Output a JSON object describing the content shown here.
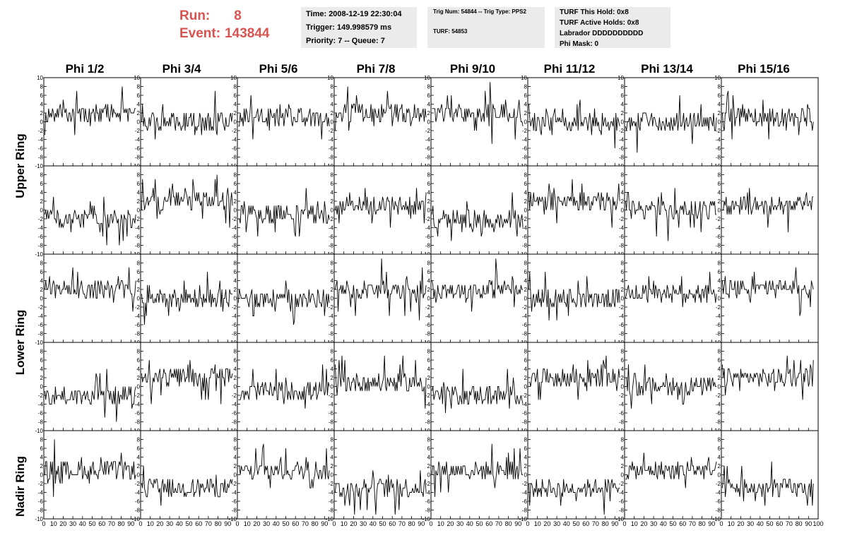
{
  "header": {
    "run_label": "Run:",
    "run_value": "8",
    "event_label": "Event:",
    "event_value": "143844"
  },
  "info": {
    "time": "Time: 2008-12-19 22:30:04",
    "trigger": "Trigger: 149.998579 ms",
    "priority": "Priority: 7 -- Queue: 7",
    "trig_num": "Trig Num: 54844 -- Trig Type: PPS2",
    "turf": "TURF: 54853",
    "turf_hold": "TURF This Hold: 0x8",
    "turf_active": "TURF Active Holds: 0x8",
    "labrador": "Labrador DDDDDDDDDD",
    "phi_mask": "Phi Mask: 0"
  },
  "columns": [
    "Phi 1/2",
    "Phi 3/4",
    "Phi 5/6",
    "Phi 7/8",
    "Phi 9/10",
    "Phi 11/12",
    "Phi 13/14",
    "Phi 15/16"
  ],
  "rows": [
    "Upper Ring",
    "Lower Ring",
    "Nadir Ring"
  ],
  "colors": {
    "run_text": "#d9534f",
    "info_bg": "#ebebeb",
    "trace": "#000000"
  },
  "chart_data": {
    "type": "line",
    "panels_rows": 5,
    "panels_cols": 8,
    "xlim": [
      0,
      100
    ],
    "ylim": [
      -10,
      10
    ],
    "x_ticks": [
      0,
      10,
      20,
      30,
      40,
      50,
      60,
      70,
      80,
      90,
      100
    ],
    "y_ticks": [
      -10,
      -8,
      -6,
      -4,
      -2,
      0,
      2,
      4,
      6,
      8,
      10
    ],
    "x_tick_labels": [
      "0",
      "10",
      "20",
      "30",
      "40",
      "50",
      "60",
      "70",
      "80",
      "90",
      "100"
    ],
    "y_tick_labels": [
      "-10",
      "-8",
      "-6",
      "-4",
      "-2",
      "0",
      "2",
      "4",
      "6",
      "8",
      "10"
    ],
    "panel_baselines": [
      [
        2,
        0,
        1,
        2,
        2,
        0,
        0,
        1
      ],
      [
        -2,
        2,
        -1,
        1,
        -2,
        2,
        0,
        1
      ],
      [
        2,
        0,
        0,
        2,
        2,
        0,
        1,
        2
      ],
      [
        -2,
        2,
        -1,
        1,
        -2,
        2,
        0,
        2
      ],
      [
        1,
        -3,
        1,
        -3,
        1,
        -3,
        1,
        -3
      ]
    ],
    "samples_per_trace": 95
  }
}
